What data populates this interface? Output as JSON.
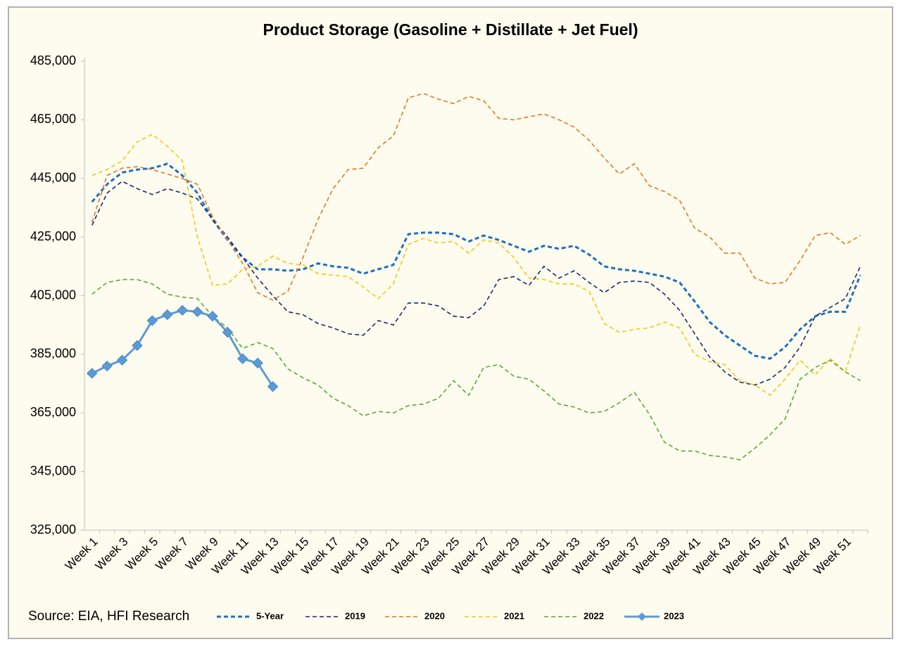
{
  "chart_data": {
    "type": "line",
    "title": "Product Storage (Gasoline + Distillate + Jet Fuel)",
    "source": "Source: EIA, HFI Research",
    "categories": [
      "Week 1",
      null,
      "Week 3",
      null,
      "Week 5",
      null,
      "Week 7",
      null,
      "Week 9",
      null,
      "Week 11",
      null,
      "Week 13",
      null,
      "Week 15",
      null,
      "Week 17",
      null,
      "Week 19",
      null,
      "Week 21",
      null,
      "Week 23",
      null,
      "Week 25",
      null,
      "Week 27",
      null,
      "Week 29",
      null,
      "Week 31",
      null,
      "Week 33",
      null,
      "Week 35",
      null,
      "Week 37",
      null,
      "Week 39",
      null,
      "Week 41",
      null,
      "Week 43",
      null,
      "Week 45",
      null,
      "Week 47",
      null,
      "Week 49",
      null,
      "Week 51",
      null
    ],
    "ylim": [
      325000,
      485000
    ],
    "yticks": [
      {
        "value": 325000,
        "label": "325,000"
      },
      {
        "value": 345000,
        "label": "345,000"
      },
      {
        "value": 365000,
        "label": "365,000"
      },
      {
        "value": 385000,
        "label": "385,000"
      },
      {
        "value": 405000,
        "label": "405,000"
      },
      {
        "value": 425000,
        "label": "425,000"
      },
      {
        "value": 445000,
        "label": "445,000"
      },
      {
        "value": 465000,
        "label": "465,000"
      },
      {
        "value": 485000,
        "label": "485,000"
      }
    ],
    "grid": false,
    "legend": "bottom",
    "series": [
      {
        "name": "5-Year",
        "color": "#1f6fc1",
        "style": "dashed",
        "values": [
          437000,
          443000,
          447000,
          448000,
          448500,
          450000,
          446000,
          440000,
          431000,
          424000,
          418000,
          414000,
          414000,
          413500,
          414000,
          416000,
          415000,
          414500,
          412500,
          414000,
          415500,
          426000,
          426500,
          426500,
          426000,
          423500,
          425500,
          424000,
          422000,
          420000,
          422000,
          421000,
          422000,
          419000,
          415000,
          414000,
          413500,
          412500,
          411500,
          409500,
          403000,
          396000,
          391500,
          388000,
          384500,
          383500,
          387500,
          393500,
          398000,
          399500,
          399500,
          412000
        ]
      },
      {
        "name": "2019",
        "color": "#1b2a6b",
        "style": "dashed",
        "values": [
          429000,
          440000,
          444000,
          441500,
          439500,
          441500,
          440000,
          438000,
          431000,
          425000,
          418000,
          411000,
          405000,
          399500,
          398500,
          395500,
          394000,
          392000,
          391500,
          396500,
          395000,
          402500,
          402500,
          401500,
          398000,
          397500,
          401500,
          410500,
          411500,
          408500,
          415000,
          411000,
          413500,
          409500,
          406000,
          409500,
          410000,
          409500,
          405500,
          400000,
          392000,
          384000,
          379000,
          375500,
          374500,
          376500,
          380500,
          387500,
          398000,
          401000,
          404000,
          415000
        ]
      },
      {
        "name": "2020",
        "color": "#e67528",
        "style": "dashed",
        "values": [
          430000,
          446000,
          448500,
          449000,
          448000,
          446500,
          445000,
          443000,
          432000,
          424000,
          416000,
          406000,
          403500,
          406500,
          418000,
          431000,
          441500,
          448000,
          448500,
          455500,
          459500,
          472500,
          474000,
          472000,
          470500,
          473000,
          471500,
          465500,
          465000,
          466000,
          467000,
          465000,
          462500,
          458000,
          452000,
          446500,
          450000,
          442500,
          440500,
          437500,
          428000,
          425000,
          419500,
          419500,
          411000,
          409000,
          409500,
          417000,
          425500,
          426500,
          422500,
          425500
        ]
      },
      {
        "name": "2021",
        "color": "#f5c518",
        "style": "dashed",
        "values": [
          446000,
          448000,
          451000,
          457500,
          460000,
          456000,
          451000,
          425000,
          408500,
          409000,
          414000,
          415000,
          418500,
          416000,
          415500,
          412500,
          412000,
          411500,
          408000,
          404000,
          409000,
          422500,
          424500,
          423000,
          423500,
          419500,
          424000,
          423000,
          418000,
          411000,
          410500,
          409000,
          409000,
          406500,
          395500,
          392500,
          393500,
          394000,
          396000,
          394000,
          385000,
          382500,
          381500,
          376000,
          374500,
          371000,
          376500,
          383000,
          378000,
          383500,
          379000,
          395000
        ]
      },
      {
        "name": "2022",
        "color": "#5aa83a",
        "style": "dashed",
        "values": [
          405500,
          409500,
          410500,
          410500,
          409000,
          405500,
          404500,
          404000,
          398000,
          394000,
          387000,
          389000,
          387000,
          380000,
          377000,
          374500,
          370000,
          367500,
          364000,
          365500,
          365000,
          367500,
          368000,
          370000,
          376000,
          371000,
          380500,
          381500,
          377500,
          376500,
          372500,
          368000,
          367000,
          365000,
          365500,
          368500,
          372000,
          364500,
          355000,
          352000,
          352000,
          350500,
          350000,
          349000,
          353000,
          357500,
          363000,
          376500,
          380500,
          383000,
          379000,
          376000
        ]
      },
      {
        "name": "2023",
        "color": "#5b9bd5",
        "style": "solid",
        "marker": "diamond",
        "values": [
          378500,
          381000,
          383000,
          388000,
          396500,
          398500,
          400000,
          399500,
          398000,
          392500,
          383500,
          382000,
          374000,
          null,
          null,
          null,
          null,
          null,
          null,
          null,
          null,
          null,
          null,
          null,
          null,
          null,
          null,
          null,
          null,
          null,
          null,
          null,
          null,
          null,
          null,
          null,
          null,
          null,
          null,
          null,
          null,
          null,
          null,
          null,
          null,
          null,
          null,
          null,
          null,
          null,
          null,
          null
        ]
      }
    ]
  }
}
